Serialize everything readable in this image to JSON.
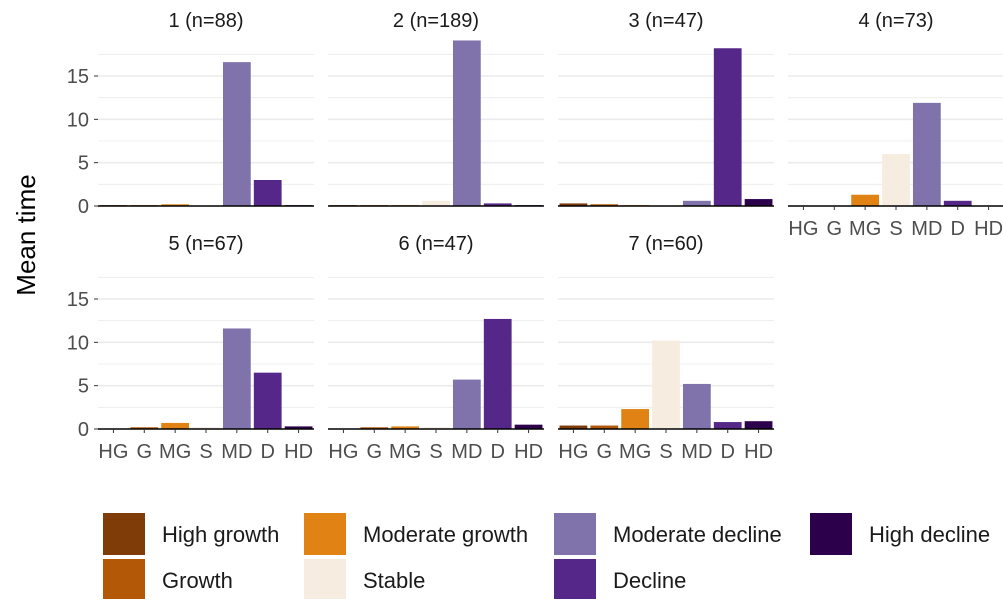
{
  "chart_data": {
    "type": "bar",
    "ylabel": "Mean time",
    "xlabel": "",
    "ylim": [
      0,
      19.5
    ],
    "yticks": [
      0,
      5,
      10,
      15
    ],
    "grid": true,
    "legend_position": "bottom",
    "categories": [
      "HG",
      "G",
      "MG",
      "S",
      "MD",
      "D",
      "HD"
    ],
    "legend": [
      {
        "key": "HG",
        "label": "High growth",
        "color": "#7f3b08"
      },
      {
        "key": "G",
        "label": "Growth",
        "color": "#b35806"
      },
      {
        "key": "MG",
        "label": "Moderate growth",
        "color": "#e08214"
      },
      {
        "key": "S",
        "label": "Stable",
        "color": "#f7ece0"
      },
      {
        "key": "MD",
        "label": "Moderate decline",
        "color": "#8073ac"
      },
      {
        "key": "D",
        "label": "Decline",
        "color": "#542788"
      },
      {
        "key": "HD",
        "label": "High decline",
        "color": "#2d004b"
      }
    ],
    "panels": [
      {
        "title": "1 (n=88)",
        "values": [
          0.1,
          0.1,
          0.2,
          0.05,
          16.6,
          3.0,
          0.1
        ]
      },
      {
        "title": "2 (n=189)",
        "values": [
          0.1,
          0.1,
          0.1,
          0.6,
          19.1,
          0.3,
          0.1
        ]
      },
      {
        "title": "3 (n=47)",
        "values": [
          0.3,
          0.2,
          0.1,
          0.05,
          0.6,
          18.2,
          0.8
        ]
      },
      {
        "title": "4 (n=73)",
        "values": [
          0.0,
          0.0,
          1.3,
          6.0,
          11.9,
          0.6,
          0.0
        ]
      },
      {
        "title": "5 (n=67)",
        "values": [
          0.0,
          0.2,
          0.7,
          0.2,
          11.6,
          6.5,
          0.3
        ]
      },
      {
        "title": "6 (n=47)",
        "values": [
          0.0,
          0.2,
          0.3,
          0.2,
          5.7,
          12.7,
          0.5
        ]
      },
      {
        "title": "7 (n=60)",
        "values": [
          0.4,
          0.4,
          2.3,
          10.2,
          5.2,
          0.8,
          0.9
        ]
      }
    ]
  }
}
